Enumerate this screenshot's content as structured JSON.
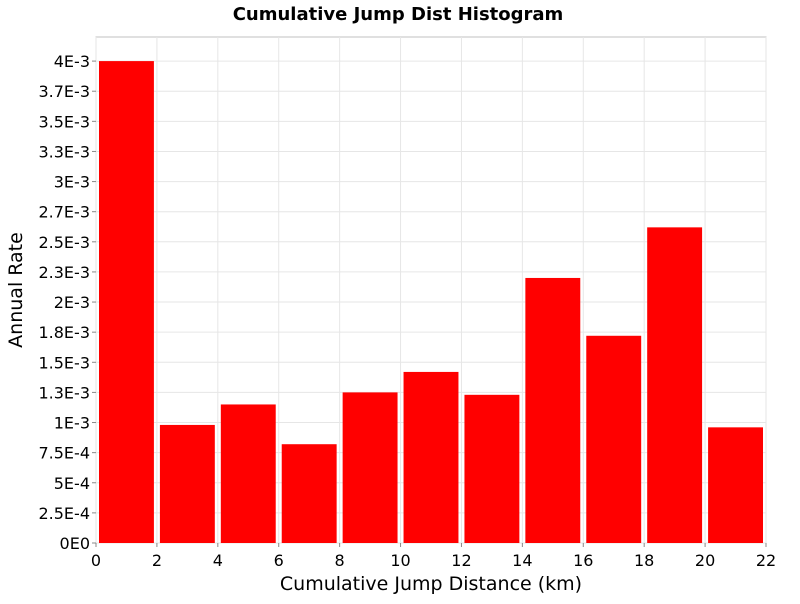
{
  "chart_data": {
    "type": "bar",
    "title": "Cumulative Jump Dist Histogram",
    "xlabel": "Cumulative Jump Distance (km)",
    "ylabel": "Annual Rate",
    "bin_width": 2,
    "x": [
      1,
      3,
      5,
      7,
      9,
      11,
      13,
      15,
      17,
      19,
      21
    ],
    "values": [
      0.004,
      0.00098,
      0.00115,
      0.00082,
      0.00125,
      0.00142,
      0.00123,
      0.0022,
      0.00172,
      0.00262,
      0.00096
    ],
    "xlim": [
      0,
      22
    ],
    "ylim": [
      0,
      0.0042
    ],
    "xticks": [
      0,
      2,
      4,
      6,
      8,
      10,
      12,
      14,
      16,
      18,
      20,
      22
    ],
    "xtick_labels": [
      "0",
      "2",
      "4",
      "6",
      "8",
      "10",
      "12",
      "14",
      "16",
      "18",
      "20",
      "22"
    ],
    "yticks": [
      0,
      0.00025,
      0.0005,
      0.00075,
      0.001,
      0.00125,
      0.0015,
      0.00175,
      0.002,
      0.00225,
      0.0025,
      0.00275,
      0.003,
      0.00325,
      0.0035,
      0.00375,
      0.004
    ],
    "ytick_labels": [
      "0E0",
      "2.5E-4",
      "5E-4",
      "7.5E-4",
      "1E-3",
      "1.3E-3",
      "1.5E-3",
      "1.8E-3",
      "2E-3",
      "2.3E-3",
      "2.5E-3",
      "2.7E-3",
      "3E-3",
      "3.3E-3",
      "3.5E-3",
      "3.7E-3",
      "4E-3"
    ],
    "bar_color": "#ff0000",
    "grid": true,
    "legend": "none"
  }
}
